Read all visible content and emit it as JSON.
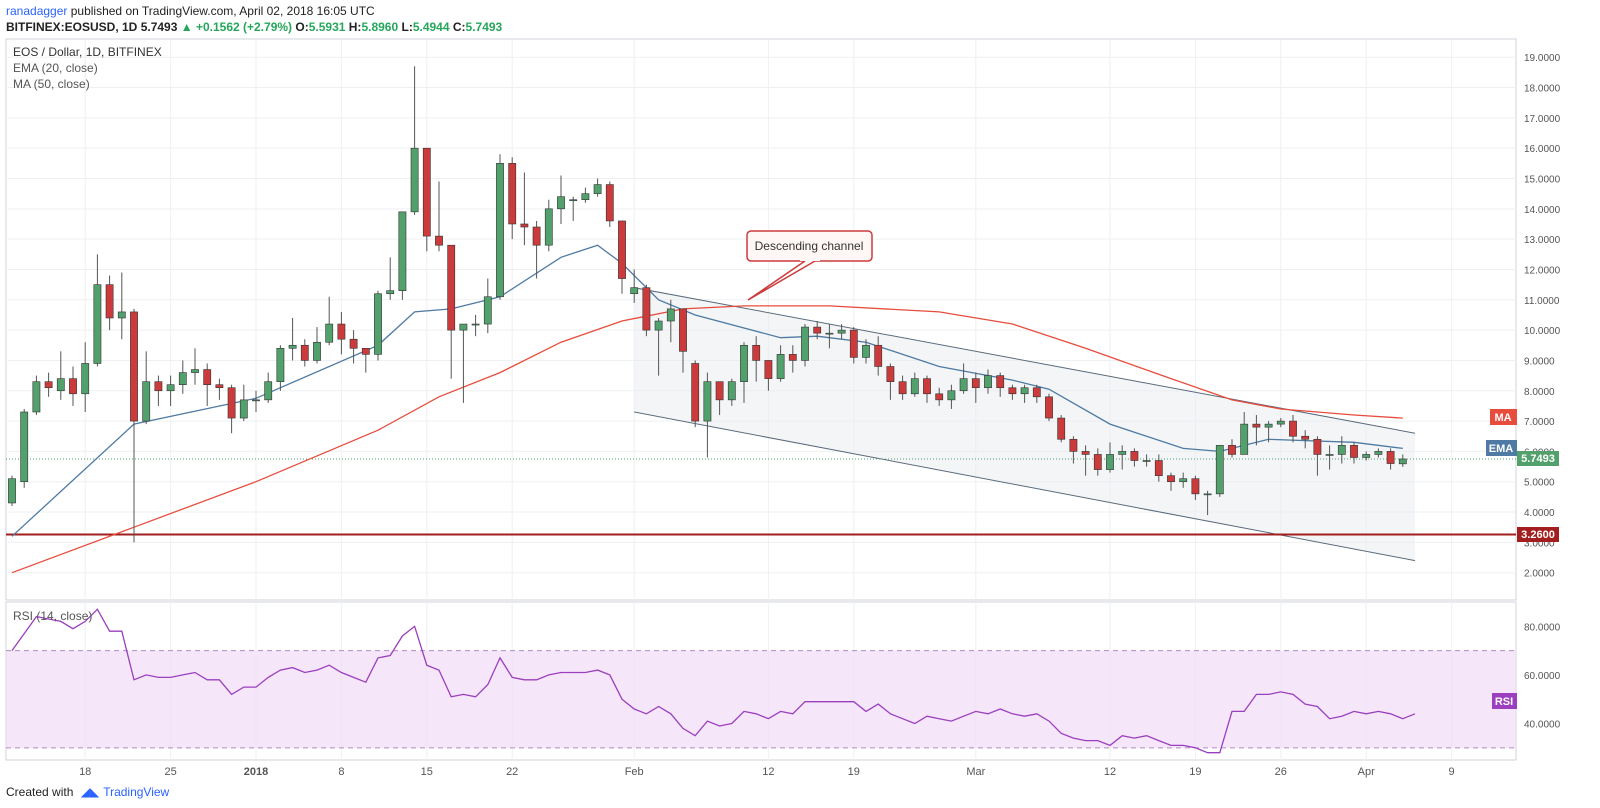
{
  "header": {
    "author": "ranadagger",
    "published": "published on TradingView.com, April 02, 2018 16:05 UTC",
    "symbol": "BITFINEX:EOSUSD, 1D",
    "last": "5.7493",
    "change": "▲ +0.1562 (+2.79%)",
    "o_label": "O:",
    "o": "5.5931",
    "h_label": "H:",
    "h": "5.8960",
    "l_label": "L:",
    "l": "5.4944",
    "c_label": "C:",
    "c": "5.7493"
  },
  "legend": {
    "title": "EOS / Dollar, 1D, BITFINEX",
    "ema": "EMA (20, close)",
    "ma": "MA (50, close)",
    "rsi": "RSI (14, close)"
  },
  "annotation": {
    "text": "Descending channel"
  },
  "support": {
    "level": 3.26,
    "label": "3.2600"
  },
  "tags": {
    "ma": "MA",
    "ema": "EMA",
    "last": "5.7493",
    "rsi": "RSI"
  },
  "footer": {
    "created": "Created with",
    "brand": "TradingView"
  },
  "colors": {
    "up": "#52a06c",
    "down": "#cc3b3b",
    "ema": "#4e7aa3",
    "ma": "#e74c3c",
    "support": "#a31e1e",
    "rsi": "#9b3fbf"
  },
  "chart_data": [
    {
      "type": "candlestick",
      "title": "EOS / Dollar, 1D, BITFINEX",
      "xlabel": "",
      "ylabel": "",
      "x_ticks": [
        "18",
        "25",
        "2018",
        "8",
        "15",
        "22",
        "Feb",
        "12",
        "19",
        "Mar",
        "12",
        "19",
        "26",
        "Apr",
        "9"
      ],
      "y_ticks": [
        "2.0000",
        "3.0000",
        "4.0000",
        "5.0000",
        "6.0000",
        "7.0000",
        "8.0000",
        "9.0000",
        "10.0000",
        "11.0000",
        "12.0000",
        "13.0000",
        "14.0000",
        "15.0000",
        "16.0000",
        "17.0000",
        "18.0000",
        "19.0000"
      ],
      "ylim": [
        1.1,
        19.6
      ],
      "candles": [
        [
          4.3,
          5.1,
          4.2,
          5.2
        ],
        [
          5.0,
          7.3,
          4.8,
          7.4
        ],
        [
          7.3,
          8.3,
          7.2,
          8.5
        ],
        [
          8.3,
          8.1,
          7.8,
          8.6
        ],
        [
          8.0,
          8.4,
          7.7,
          9.3
        ],
        [
          8.4,
          7.9,
          7.5,
          8.8
        ],
        [
          7.9,
          8.9,
          7.3,
          9.6
        ],
        [
          8.9,
          11.5,
          8.8,
          12.5
        ],
        [
          11.5,
          10.4,
          10.0,
          11.8
        ],
        [
          10.4,
          10.6,
          9.7,
          11.9
        ],
        [
          10.6,
          7.0,
          3.0,
          10.7
        ],
        [
          7.0,
          8.3,
          6.9,
          9.3
        ],
        [
          8.3,
          8.0,
          7.5,
          8.5
        ],
        [
          8.0,
          8.2,
          7.5,
          8.5
        ],
        [
          8.2,
          8.6,
          7.9,
          9.0
        ],
        [
          8.6,
          8.7,
          8.2,
          9.4
        ],
        [
          8.7,
          8.2,
          7.5,
          8.9
        ],
        [
          8.2,
          8.1,
          7.7,
          8.4
        ],
        [
          8.1,
          7.1,
          6.6,
          8.2
        ],
        [
          7.1,
          7.7,
          7.0,
          8.2
        ],
        [
          7.7,
          7.7,
          7.3,
          8.0
        ],
        [
          7.7,
          8.3,
          7.6,
          8.6
        ],
        [
          8.3,
          9.4,
          8.0,
          9.5
        ],
        [
          9.4,
          9.5,
          9.0,
          10.4
        ],
        [
          9.5,
          9.0,
          8.8,
          9.7
        ],
        [
          9.0,
          9.6,
          8.9,
          10.1
        ],
        [
          9.6,
          10.2,
          9.5,
          11.1
        ],
        [
          10.2,
          9.7,
          9.2,
          10.6
        ],
        [
          9.7,
          9.4,
          8.9,
          10.0
        ],
        [
          9.4,
          9.2,
          8.6,
          9.4
        ],
        [
          9.2,
          11.2,
          9.0,
          11.3
        ],
        [
          11.2,
          11.3,
          11.0,
          12.4
        ],
        [
          11.3,
          13.9,
          11.0,
          13.9
        ],
        [
          13.9,
          16.0,
          13.8,
          18.7
        ],
        [
          16.0,
          13.1,
          12.6,
          16.0
        ],
        [
          13.1,
          12.8,
          12.6,
          14.9
        ],
        [
          12.8,
          10.0,
          8.4,
          12.8
        ],
        [
          10.0,
          10.2,
          7.6,
          10.2
        ],
        [
          10.2,
          10.2,
          9.8,
          10.5
        ],
        [
          10.2,
          11.1,
          9.9,
          11.7
        ],
        [
          11.1,
          15.5,
          11.0,
          15.8
        ],
        [
          15.5,
          13.5,
          13.0,
          15.7
        ],
        [
          13.5,
          13.4,
          12.8,
          15.2
        ],
        [
          13.4,
          12.8,
          11.7,
          13.6
        ],
        [
          12.8,
          14.0,
          12.6,
          14.3
        ],
        [
          14.0,
          14.4,
          13.5,
          15.1
        ],
        [
          14.3,
          14.3,
          13.6,
          14.4
        ],
        [
          14.3,
          14.5,
          14.2,
          14.7
        ],
        [
          14.5,
          14.8,
          14.4,
          15.0
        ],
        [
          14.8,
          13.6,
          13.4,
          14.9
        ],
        [
          13.6,
          11.7,
          11.2,
          13.6
        ],
        [
          11.2,
          11.4,
          10.9,
          12.0
        ],
        [
          11.4,
          10.0,
          9.8,
          11.5
        ],
        [
          10.0,
          10.3,
          8.5,
          10.4
        ],
        [
          10.3,
          10.7,
          9.6,
          11.0
        ],
        [
          10.7,
          9.3,
          8.6,
          10.7
        ],
        [
          8.9,
          7.0,
          6.8,
          9.0
        ],
        [
          7.0,
          8.3,
          5.8,
          8.6
        ],
        [
          8.3,
          7.7,
          7.2,
          8.3
        ],
        [
          7.7,
          8.3,
          7.5,
          8.4
        ],
        [
          8.3,
          9.5,
          7.6,
          9.6
        ],
        [
          9.5,
          9.0,
          8.3,
          9.8
        ],
        [
          9.0,
          8.4,
          8.0,
          9.0
        ],
        [
          8.4,
          9.2,
          8.3,
          9.5
        ],
        [
          9.2,
          9.0,
          8.6,
          9.5
        ],
        [
          9.0,
          10.1,
          8.8,
          10.2
        ],
        [
          10.1,
          9.9,
          9.7,
          10.3
        ],
        [
          9.9,
          9.9,
          9.4,
          10.2
        ],
        [
          9.9,
          10.0,
          9.7,
          10.2
        ],
        [
          10.0,
          9.1,
          8.9,
          10.1
        ],
        [
          9.1,
          9.5,
          8.9,
          9.7
        ],
        [
          9.5,
          8.8,
          8.5,
          9.8
        ],
        [
          8.8,
          8.3,
          7.7,
          8.9
        ],
        [
          8.3,
          7.9,
          7.7,
          8.5
        ],
        [
          7.9,
          8.4,
          7.8,
          8.6
        ],
        [
          8.4,
          7.9,
          7.6,
          8.5
        ],
        [
          7.9,
          7.7,
          7.5,
          8.1
        ],
        [
          7.7,
          8.0,
          7.4,
          8.2
        ],
        [
          8.0,
          8.4,
          7.9,
          8.9
        ],
        [
          8.4,
          8.1,
          7.6,
          8.6
        ],
        [
          8.1,
          8.5,
          7.9,
          8.7
        ],
        [
          8.5,
          8.1,
          7.8,
          8.6
        ],
        [
          8.1,
          7.9,
          7.7,
          8.2
        ],
        [
          7.9,
          8.1,
          7.6,
          8.2
        ],
        [
          8.1,
          7.8,
          7.6,
          8.2
        ],
        [
          7.8,
          7.1,
          7.0,
          7.9
        ],
        [
          7.1,
          6.4,
          6.3,
          7.2
        ],
        [
          6.4,
          6.0,
          5.6,
          6.5
        ],
        [
          6.0,
          5.9,
          5.2,
          6.2
        ],
        [
          5.9,
          5.4,
          5.2,
          6.1
        ],
        [
          5.4,
          5.9,
          5.3,
          6.3
        ],
        [
          5.9,
          6.0,
          5.4,
          6.2
        ],
        [
          6.0,
          5.7,
          5.5,
          6.1
        ],
        [
          5.7,
          5.7,
          5.5,
          5.9
        ],
        [
          5.7,
          5.2,
          5.0,
          5.9
        ],
        [
          5.2,
          5.0,
          4.7,
          5.3
        ],
        [
          5.0,
          5.1,
          4.8,
          5.3
        ],
        [
          5.1,
          4.6,
          4.4,
          5.2
        ],
        [
          4.6,
          4.6,
          3.9,
          4.7
        ],
        [
          4.6,
          6.2,
          4.5,
          6.2
        ],
        [
          6.2,
          5.9,
          5.8,
          6.4
        ],
        [
          5.9,
          6.9,
          5.9,
          7.3
        ],
        [
          6.9,
          6.8,
          6.2,
          7.2
        ],
        [
          6.8,
          6.9,
          6.3,
          7.0
        ],
        [
          6.9,
          7.0,
          6.8,
          7.1
        ],
        [
          7.0,
          6.5,
          6.3,
          7.2
        ],
        [
          6.5,
          6.4,
          6.1,
          6.7
        ],
        [
          6.4,
          5.9,
          5.2,
          6.5
        ],
        [
          5.9,
          5.9,
          5.4,
          6.2
        ],
        [
          5.9,
          6.2,
          5.6,
          6.5
        ],
        [
          6.2,
          5.8,
          5.6,
          6.3
        ],
        [
          5.8,
          5.9,
          5.7,
          6.0
        ],
        [
          5.9,
          6.0,
          5.8,
          6.1
        ],
        [
          6.0,
          5.6,
          5.4,
          6.1
        ],
        [
          5.59,
          5.75,
          5.49,
          5.9
        ]
      ],
      "ema20": [
        [
          0,
          3.2
        ],
        [
          10,
          6.9
        ],
        [
          20,
          7.75
        ],
        [
          30,
          9.5
        ],
        [
          33,
          10.6
        ],
        [
          36,
          10.7
        ],
        [
          40,
          11.1
        ],
        [
          45,
          12.4
        ],
        [
          48,
          12.8
        ],
        [
          50,
          12.2
        ],
        [
          53,
          11.0
        ],
        [
          56,
          10.5
        ],
        [
          63,
          9.75
        ],
        [
          66,
          9.8
        ],
        [
          70,
          9.6
        ],
        [
          76,
          8.8
        ],
        [
          82,
          8.35
        ],
        [
          85,
          8.05
        ],
        [
          90,
          6.9
        ],
        [
          96,
          6.1
        ],
        [
          99,
          6.0
        ],
        [
          103,
          6.4
        ],
        [
          110,
          6.3
        ],
        [
          114,
          6.1
        ]
      ],
      "ma50": [
        [
          0,
          2.0
        ],
        [
          10,
          3.5
        ],
        [
          20,
          5.0
        ],
        [
          30,
          6.7
        ],
        [
          35,
          7.8
        ],
        [
          40,
          8.6
        ],
        [
          45,
          9.6
        ],
        [
          50,
          10.3
        ],
        [
          55,
          10.7
        ],
        [
          60,
          10.8
        ],
        [
          67,
          10.8
        ],
        [
          76,
          10.6
        ],
        [
          82,
          10.2
        ],
        [
          88,
          9.4
        ],
        [
          95,
          8.4
        ],
        [
          100,
          7.7
        ],
        [
          104,
          7.4
        ],
        [
          110,
          7.2
        ],
        [
          114,
          7.1
        ]
      ],
      "channel": {
        "upper": [
          [
            51,
            11.4
          ],
          [
            115,
            6.6
          ]
        ],
        "lower": [
          [
            51,
            7.3
          ],
          [
            115,
            2.4
          ]
        ]
      }
    },
    {
      "type": "line",
      "title": "RSI (14, close)",
      "xlabel": "",
      "ylabel": "",
      "y_ticks": [
        "40.0000",
        "60.0000",
        "80.0000"
      ],
      "ylim": [
        25,
        90
      ],
      "bands": [
        30,
        70
      ],
      "values": [
        70,
        77,
        84,
        83,
        82,
        79,
        82,
        87,
        78,
        78,
        58,
        60,
        59,
        59,
        60,
        61,
        58,
        58,
        52,
        55,
        55,
        59,
        62,
        63,
        61,
        62,
        64,
        61,
        59,
        57,
        67,
        68,
        76,
        80,
        64,
        62,
        51,
        52,
        51,
        56,
        67,
        59,
        58,
        58,
        60,
        61,
        61,
        61,
        62,
        60,
        50,
        46,
        44,
        47,
        44,
        38,
        35,
        41,
        39,
        40,
        45,
        44,
        42,
        45,
        44,
        49,
        49,
        49,
        49,
        49,
        45,
        48,
        44,
        42,
        40,
        43,
        42,
        41,
        43,
        45,
        44,
        46,
        44,
        43,
        44,
        41,
        36,
        34,
        33,
        33,
        31,
        35,
        34,
        35,
        33,
        31,
        31,
        30,
        28,
        28,
        45,
        45,
        52,
        52,
        53,
        52,
        48,
        47,
        42,
        43,
        45,
        44,
        45,
        44,
        42,
        44
      ]
    }
  ]
}
